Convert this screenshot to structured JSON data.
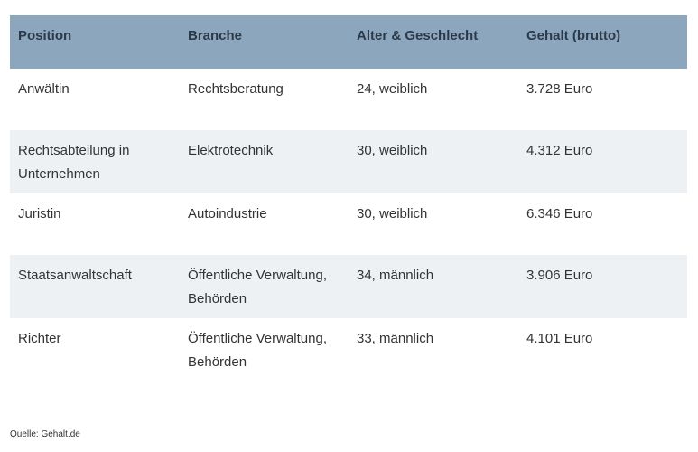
{
  "table": {
    "header": [
      "Position",
      "Branche",
      "Alter & Geschlecht",
      "Gehalt (brutto)"
    ],
    "rows": [
      [
        "Anwältin",
        "Rechtsberatung",
        "24, weiblich",
        "3.728 Euro"
      ],
      [
        "Rechtsabteilung in Unternehmen",
        "Elektrotechnik",
        "30, weiblich",
        "4.312 Euro"
      ],
      [
        "Juristin",
        "Autoindustrie",
        "30, weiblich",
        "6.346 Euro"
      ],
      [
        "Staatsanwaltschaft",
        "Öffentliche Verwaltung, Behörden",
        "34, männlich",
        "3.906 Euro"
      ],
      [
        "Richter",
        "Öffentliche Verwaltung, Behörden",
        "33, männlich",
        "4.101 Euro"
      ]
    ]
  },
  "source": "Quelle: Gehalt.de"
}
